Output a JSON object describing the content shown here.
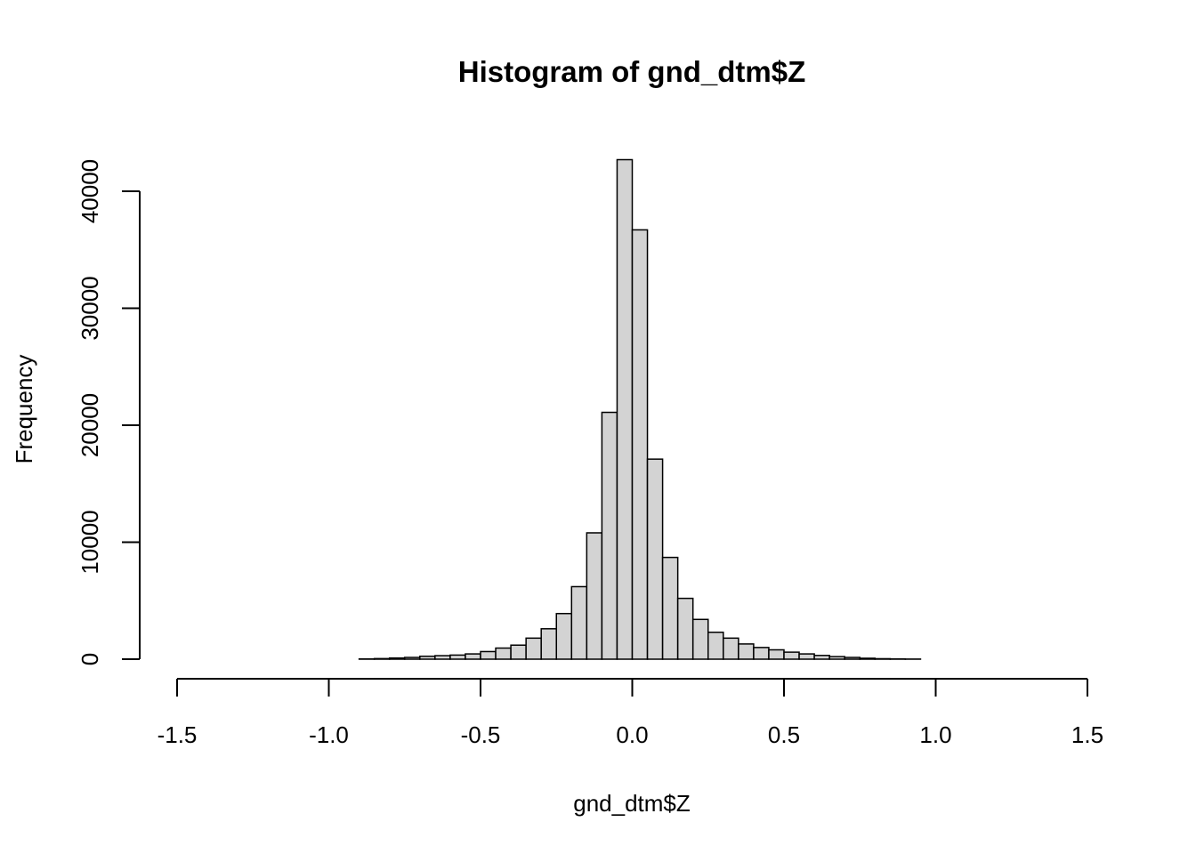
{
  "chart_data": {
    "type": "bar",
    "title": "Histogram of gnd_dtm$Z",
    "xlabel": "gnd_dtm$Z",
    "ylabel": "Frequency",
    "xlim": [
      -1.5,
      1.5
    ],
    "ylim": [
      0,
      42700
    ],
    "x_ticks": [
      "-1.5",
      "-1.0",
      "-0.5",
      "0.0",
      "0.5",
      "1.0",
      "1.5"
    ],
    "x_tick_values": [
      -1.5,
      -1.0,
      -0.5,
      0.0,
      0.5,
      1.0,
      1.5
    ],
    "y_ticks": [
      "0",
      "10000",
      "20000",
      "30000",
      "40000"
    ],
    "y_tick_values": [
      0,
      10000,
      20000,
      30000,
      40000
    ],
    "bin_width": 0.05,
    "bin_start": -1.5,
    "values": [
      0,
      0,
      0,
      0,
      0,
      0,
      0,
      0,
      0,
      0,
      0,
      0,
      20,
      50,
      100,
      150,
      250,
      300,
      350,
      450,
      650,
      950,
      1200,
      1800,
      2600,
      3900,
      6200,
      10800,
      21100,
      42700,
      36700,
      17100,
      8700,
      5200,
      3400,
      2300,
      1800,
      1300,
      1000,
      800,
      600,
      450,
      320,
      220,
      150,
      80,
      40,
      20,
      10,
      0,
      0,
      0,
      0,
      0,
      0,
      0,
      0,
      0,
      0,
      0
    ],
    "bar_fill": "#d3d3d3",
    "bar_stroke": "#000000",
    "grid": false
  }
}
